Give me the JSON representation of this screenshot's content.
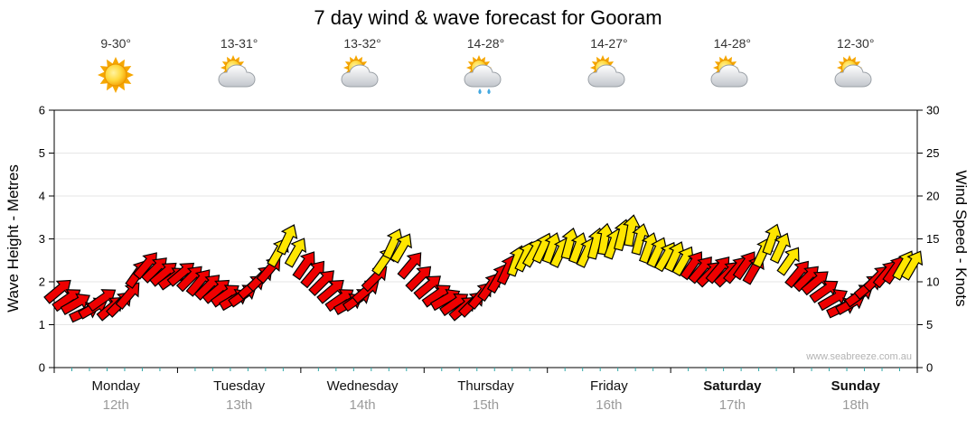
{
  "title": "7 day wind & wave forecast for Gooram",
  "watermark": "www.seabreeze.com.au",
  "days": [
    {
      "name": "Monday",
      "date": "12th",
      "temp": "9-30°",
      "icon": "sunny",
      "bold": false
    },
    {
      "name": "Tuesday",
      "date": "13th",
      "temp": "13-31°",
      "icon": "partly-cloudy",
      "bold": false
    },
    {
      "name": "Wednesday",
      "date": "14th",
      "temp": "13-32°",
      "icon": "partly-cloudy",
      "bold": false
    },
    {
      "name": "Thursday",
      "date": "15th",
      "temp": "14-28°",
      "icon": "showers",
      "bold": false
    },
    {
      "name": "Friday",
      "date": "16th",
      "temp": "14-27°",
      "icon": "partly-cloudy",
      "bold": false
    },
    {
      "name": "Saturday",
      "date": "17th",
      "temp": "14-28°",
      "icon": "partly-cloudy",
      "bold": true
    },
    {
      "name": "Sunday",
      "date": "18th",
      "temp": "12-30°",
      "icon": "partly-cloudy",
      "bold": true
    }
  ],
  "chart_data": {
    "type": "scatter",
    "marker": "wind-arrow",
    "title": "7 day wind & wave forecast for Gooram",
    "left_axis": {
      "label": "Wave Height - Metres",
      "min": 0,
      "max": 6,
      "ticks": [
        0,
        1,
        2,
        3,
        4,
        5,
        6
      ]
    },
    "right_axis": {
      "label": "Wind Speed - Knots",
      "min": 0,
      "max": 30,
      "ticks": [
        0,
        5,
        10,
        15,
        20,
        25,
        30
      ]
    },
    "x_categories": [
      "Monday 12th",
      "Tuesday 13th",
      "Wednesday 14th",
      "Thursday 15th",
      "Friday 16th",
      "Saturday 17th",
      "Sunday 18th"
    ],
    "grid": true,
    "colors": {
      "low_wind": "#ee0000",
      "high_wind": "#ffe600",
      "outline": "#000000"
    },
    "wind_by_day": [
      {
        "day": "Monday 12th",
        "knots": [
          9,
          8,
          7.5,
          6.5,
          7,
          8,
          7,
          7.5,
          8.5,
          11,
          12,
          11.5,
          11,
          10.5
        ],
        "dir_deg": [
          50,
          55,
          60,
          65,
          60,
          55,
          50,
          45,
          40,
          35,
          40,
          45,
          50,
          55
        ],
        "colors": "rrrrrrrrrrrrrr"
      },
      {
        "day": "Tuesday 13th",
        "knots": [
          11,
          10.5,
          10,
          9.5,
          9,
          8.5,
          8,
          8.5,
          9.5,
          10.5,
          11.5,
          13.5,
          15,
          13.5
        ],
        "dir_deg": [
          50,
          45,
          40,
          45,
          50,
          55,
          60,
          55,
          50,
          45,
          40,
          30,
          25,
          30
        ],
        "colors": "rrrrrrrrrrryyy"
      },
      {
        "day": "Wednesday 14th",
        "knots": [
          12,
          11,
          10,
          9,
          8,
          7.5,
          8,
          9,
          10.5,
          12.5,
          14.5,
          14,
          12,
          10.5
        ],
        "dir_deg": [
          35,
          40,
          45,
          50,
          55,
          60,
          55,
          50,
          45,
          35,
          25,
          30,
          40,
          45
        ],
        "colors": "rrrrrrrrryyyrr"
      },
      {
        "day": "Thursday 15th",
        "knots": [
          9.5,
          8.5,
          8,
          7.5,
          7,
          7.5,
          8.5,
          9.5,
          10.5,
          11.5,
          12.5,
          13,
          13.5,
          14
        ],
        "dir_deg": [
          50,
          55,
          60,
          55,
          50,
          45,
          40,
          35,
          30,
          25,
          20,
          25,
          30,
          25
        ],
        "colors": "rrrrrrrrrryyyy"
      },
      {
        "day": "Friday 16th",
        "knots": [
          14,
          13.5,
          14.5,
          14,
          13.5,
          14.5,
          15,
          14.5,
          15.5,
          16,
          15,
          14,
          13.5,
          13
        ],
        "dir_deg": [
          20,
          25,
          15,
          20,
          25,
          15,
          10,
          20,
          15,
          10,
          15,
          20,
          25,
          30
        ],
        "colors": "yyyyyyyyyyyyyy"
      },
      {
        "day": "Saturday 17th",
        "knots": [
          13,
          12.5,
          12,
          11.5,
          11,
          11.5,
          11,
          11.5,
          12,
          11.5,
          13.5,
          15,
          14,
          12.5
        ],
        "dir_deg": [
          25,
          30,
          35,
          40,
          45,
          40,
          45,
          40,
          35,
          30,
          25,
          20,
          25,
          35
        ],
        "colors": "yyrrrrrrrryyyy"
      },
      {
        "day": "Sunday 18th",
        "knots": [
          11,
          10.5,
          10,
          9,
          8,
          7,
          7.5,
          8.5,
          9.5,
          10.5,
          11,
          11.5,
          12,
          12
        ],
        "dir_deg": [
          40,
          45,
          50,
          55,
          60,
          65,
          60,
          55,
          50,
          45,
          40,
          35,
          30,
          30
        ],
        "colors": "rrrrrrrrrrrryy"
      }
    ]
  }
}
